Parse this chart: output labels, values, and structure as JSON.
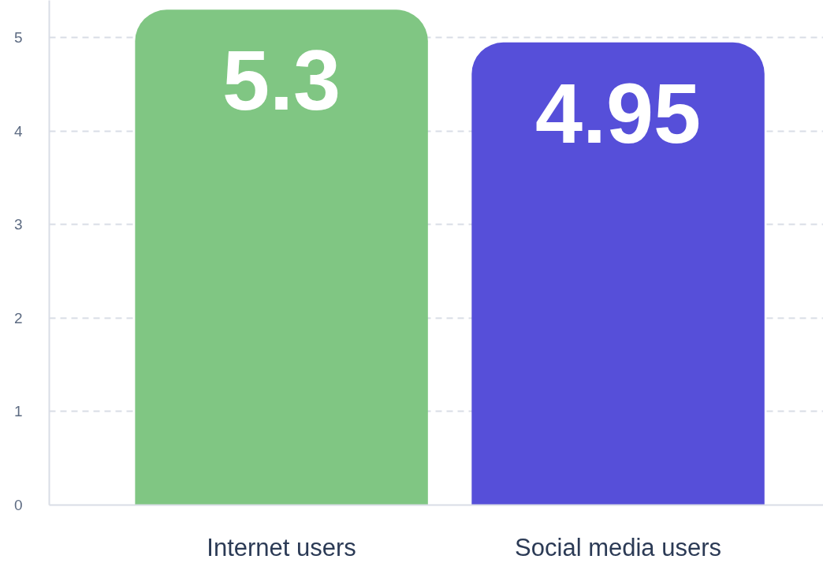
{
  "chart_data": {
    "type": "bar",
    "categories": [
      "Internet users",
      "Social media users"
    ],
    "values": [
      5.3,
      4.95
    ],
    "colors": [
      "#80c683",
      "#564fd9"
    ],
    "ylim": [
      0,
      5.4
    ],
    "yticks": [
      0,
      1,
      2,
      3,
      4,
      5
    ],
    "grid": "y",
    "data_labels": true
  }
}
